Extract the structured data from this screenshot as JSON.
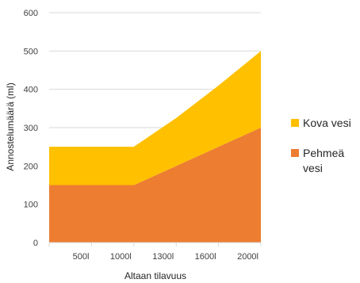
{
  "chart_data": {
    "type": "area",
    "stacked": true,
    "title": "",
    "xlabel": "Altaan tilavuus",
    "ylabel": "Annostelumäärä (ml)",
    "categories": [
      "",
      "500l",
      "1000l",
      "1300l",
      "1600l",
      "2000l"
    ],
    "ylim": [
      0,
      600
    ],
    "yticks": [
      0,
      100,
      200,
      300,
      400,
      500,
      600
    ],
    "grid": true,
    "legend_position": "right",
    "series": [
      {
        "name": "Pehmeä vesi",
        "values": [
          150,
          150,
          150,
          200,
          250,
          300
        ],
        "color": "#ED7D31"
      },
      {
        "name": "Kova vesi",
        "values": [
          100,
          100,
          100,
          125,
          160,
          200
        ],
        "color": "#FFC000"
      }
    ]
  }
}
